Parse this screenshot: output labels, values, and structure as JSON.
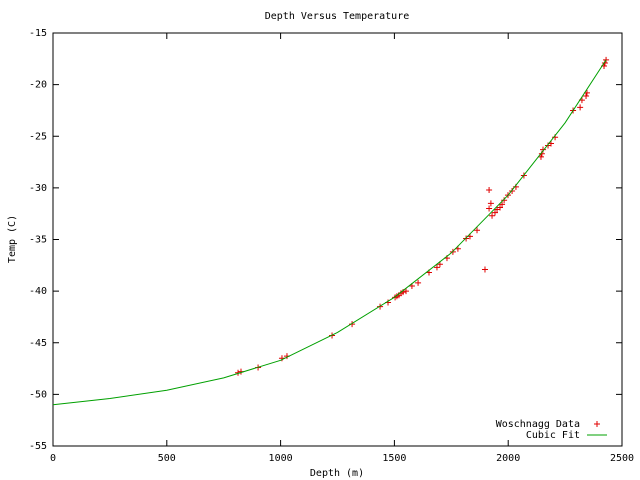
{
  "chart_data": {
    "type": "scatter",
    "title": "Depth Versus Temperature",
    "x_label": "Depth (m)",
    "y_label": "Temp (C)",
    "xlim": [
      0,
      2500
    ],
    "xticks": [
      0,
      500,
      1000,
      1500,
      2000,
      2500
    ],
    "ylim": [
      -55,
      -15
    ],
    "yticks": [
      -55,
      -50,
      -45,
      -40,
      -35,
      -30,
      -25,
      -20,
      -15
    ],
    "legend": "bottom-right",
    "series": [
      {
        "name": "Woschnagg Data",
        "color": "#e00000",
        "mode": "points",
        "x": [
          813,
          826,
          901,
          1006,
          1028,
          1226,
          1314,
          1437,
          1472,
          1503,
          1511,
          1520,
          1529,
          1538,
          1551,
          1577,
          1604,
          1652,
          1687,
          1700,
          1731,
          1757,
          1779,
          1815,
          1832,
          1863,
          1898,
          1916,
          1916,
          1924,
          1929,
          1942,
          1951,
          1964,
          1973,
          1982,
          1999,
          2017,
          2034,
          2069,
          2144,
          2148,
          2153,
          2175,
          2188,
          2206,
          2285,
          2316,
          2324,
          2342,
          2346,
          2421,
          2425,
          2430
        ],
        "values": [
          -47.9,
          -47.8,
          -47.4,
          -46.5,
          -46.3,
          -44.3,
          -43.2,
          -41.5,
          -41.1,
          -40.6,
          -40.5,
          -40.4,
          -40.2,
          -40.1,
          -40.0,
          -39.5,
          -39.2,
          -38.2,
          -37.7,
          -37.4,
          -36.8,
          -36.2,
          -35.9,
          -34.9,
          -34.7,
          -34.1,
          -37.9,
          -30.2,
          -32.0,
          -31.5,
          -32.7,
          -32.4,
          -32.1,
          -31.9,
          -31.6,
          -31.2,
          -30.7,
          -30.3,
          -29.9,
          -28.8,
          -27.0,
          -26.7,
          -26.3,
          -25.9,
          -25.7,
          -25.1,
          -22.5,
          -22.2,
          -21.5,
          -21.1,
          -20.8,
          -18.2,
          -17.9,
          -17.6
        ]
      },
      {
        "name": "Cubic Fit",
        "color": "#00a000",
        "mode": "lines",
        "x": [
          0,
          250,
          500,
          750,
          1000,
          1250,
          1500,
          1750,
          2000,
          2250,
          2430
        ],
        "values": [
          -51.0,
          -50.4,
          -49.6,
          -48.4,
          -46.7,
          -44.0,
          -40.6,
          -36.3,
          -30.7,
          -23.7,
          -17.6
        ]
      }
    ]
  }
}
